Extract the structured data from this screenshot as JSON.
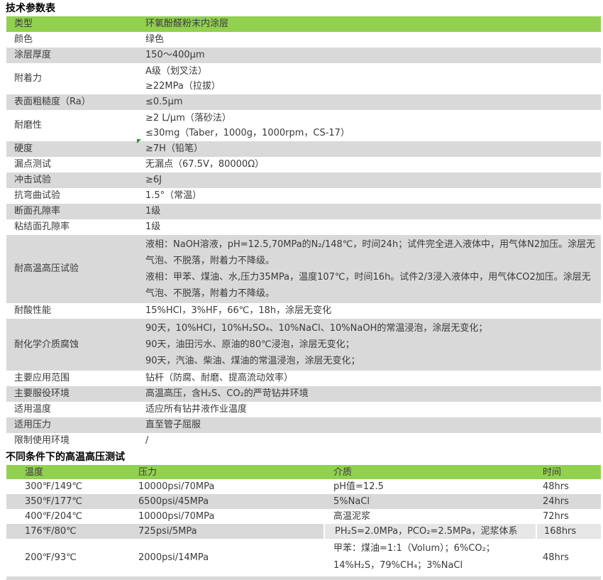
{
  "colors": {
    "header_green": "#92D050",
    "row_gray": "#D9D9D9",
    "row_light_gray": "#E7E6E6",
    "marker_green": "#1E9B1E",
    "text": "#3a3a3a"
  },
  "titles": {
    "spec": "技术参数表",
    "hpht": "不同条件下的高温高压测试"
  },
  "spec_table": {
    "rows": [
      {
        "label": "类型",
        "value": "环氧酚醛粉末内涂层"
      },
      {
        "label": "颜色",
        "value": "绿色"
      },
      {
        "label": "涂层厚度",
        "value": "150～400μm"
      },
      {
        "label": "附着力",
        "value": "A级（划叉法）\n≥22MPa（拉拔）"
      },
      {
        "label": "表面粗糙度（Ra）",
        "value": "≤0.5μm"
      },
      {
        "label": "耐磨性",
        "value": "≥2 L/μm（落砂法）\n≤30mg（Taber，1000g，1000rpm，CS-17）"
      },
      {
        "label": "硬度",
        "value": "≥7H（铅笔）",
        "marker": true
      },
      {
        "label": "漏点测试",
        "value": "无漏点（67.5V，80000Ω）"
      },
      {
        "label": "冲击试验",
        "value": "≥6J"
      },
      {
        "label": "抗弯曲试验",
        "value": "1.5°（常温）"
      },
      {
        "label": "断面孔隙率",
        "value": "1级"
      },
      {
        "label": "粘结面孔隙率",
        "value": "1级"
      },
      {
        "label": "耐高温高压试验",
        "value": "液相：NaOH溶液，pH=12.5,70MPa的N₂/148℃，时间24h；试件完全进入液体中，用气体N2加压。涂层无\n气泡、不脱落，附着力不降级。\n液相：甲苯、煤油、水,压力35MPa，温度107℃，时间16h。试件2/3浸入液体中，用气体CO2加压。涂层无\n气泡、不脱落，附着力不降级。"
      },
      {
        "label": "耐酸性能",
        "value": "15%HCl，3%HF，66℃，18h，涂层无变化"
      },
      {
        "label": "耐化学介质腐蚀",
        "value": "90天，10%HCl，10%H₂SO₄、10%NaCl、10%NaOH的常温浸泡，涂层无变化；\n90天，油田污水、原油的80℃浸泡，涂层无变化；\n90天，汽油、柴油、煤油的常温浸泡，涂层无变化；"
      },
      {
        "label": "主要应用范围",
        "value": "钻杆（防腐、耐磨、提高流动效率）"
      },
      {
        "label": "主要服役环境",
        "value": "高温高压，含H₂S、CO₂的严苛钻井环境"
      },
      {
        "label": "适用温度",
        "value": "适应所有钻井液作业温度"
      },
      {
        "label": "适用压力",
        "value": "直至管子屈服"
      },
      {
        "label": "限制使用环境",
        "value": "/"
      }
    ]
  },
  "hpht_table": {
    "headers": [
      "温度",
      "压力",
      "介质",
      "时间"
    ],
    "rows": [
      {
        "temperature": "300℉/149℃",
        "pressure": "10000psi/70MPa",
        "medium": "pH值=12.5",
        "time": "48hrs"
      },
      {
        "temperature": "350℉/177℃",
        "pressure": "6500psi/45MPa",
        "medium": "5%NaCl",
        "time": "24hrs"
      },
      {
        "temperature": "400℉/204℃",
        "pressure": "10000psi/70MPa",
        "medium": "高温泥浆",
        "time": "72hrs"
      },
      {
        "temperature": "176℉/80℃",
        "pressure": "725psi/5MPa",
        "medium": "PH₂S=2.0MPa，PCO₂=2.5MPa，泥浆体系",
        "time": "168hrs",
        "light_cells": true
      },
      {
        "temperature": "200℉/93℃",
        "pressure": "2000psi/14MPa",
        "medium": "甲苯：煤油=1:1（Volum）；6%CO₂；\n14%H₂S，79%CH₄；3%NaCl",
        "time": "48hrs",
        "two_line": true
      }
    ]
  }
}
